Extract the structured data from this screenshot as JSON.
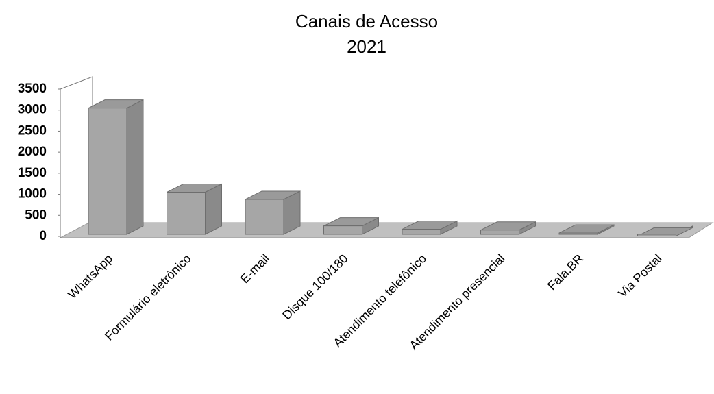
{
  "chart_data": {
    "type": "bar3d",
    "title": "Canais de Acesso",
    "subtitle": "2021",
    "categories": [
      "WhatsApp",
      "Formulário eletrônico",
      "E-mail",
      "Disque 100/180",
      "Atendimento telefônico",
      "Atendimento presencial",
      "Fala.BR",
      "Via Postal"
    ],
    "values": [
      3050,
      1050,
      880,
      250,
      170,
      150,
      80,
      10
    ],
    "color": "#a6a6a6",
    "ylim": [
      0,
      3500
    ],
    "yticks": [
      0,
      500,
      1000,
      1500,
      2000,
      2500,
      3000,
      3500
    ],
    "grid": false
  }
}
